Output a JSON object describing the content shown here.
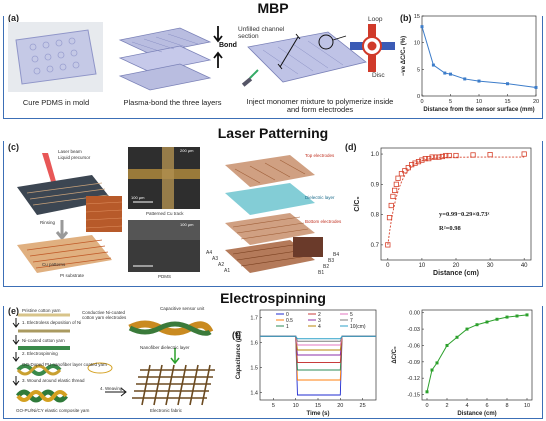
{
  "sections": {
    "mbp": "MBP",
    "laser": "Laser Patterning",
    "electro": "Electrospinning"
  },
  "panel_a": {
    "label": "(a)",
    "captions": [
      "Cure PDMS in mold",
      "Plasma-bond the three layers",
      "Inject monomer mixture to polymerize inside and form electrodes"
    ],
    "bond_label": "Bond",
    "channel_label": "Unfilled channel section",
    "loop_label": "Loop",
    "disc_label": "Disc"
  },
  "panel_b": {
    "label": "(b)"
  },
  "panel_c": {
    "label": "(c)",
    "labels": [
      "Laser beam",
      "Liquid precursor",
      "Rinsing",
      "Cu patterns",
      "PI substrate",
      "Patterned Cu track",
      "PDMS",
      "Top electrodes",
      "Dielectric layer",
      "Bottom electrodes"
    ],
    "electrode_labels": [
      "A4",
      "A3",
      "A2",
      "A1",
      "B1",
      "B2",
      "B3",
      "B4"
    ],
    "scale_labels": [
      "100 μm",
      "200 μm",
      "100 μm"
    ]
  },
  "panel_d": {
    "label": "(d)"
  },
  "panel_e": {
    "label": "(e)",
    "labels": [
      "Pristine cotton yarn",
      "1. Electroless deposition of Ni",
      "Ni-coated cotton yarn",
      "2. Electrospinning",
      "GO-Doped PU nanofiber layer coated yarn",
      "3. Wound around elastic thread",
      "GO-PU/Ni/CY elastic composite yarn",
      "Conductive Ni-coated cotton yarn electrodes",
      "Capacitive sensor unit",
      "Nanofiber dielectric layer",
      "4. Weaving",
      "Electronic fabric"
    ]
  },
  "panel_f": {
    "label": "(f)"
  },
  "chart_data": [
    {
      "id": "b",
      "type": "line",
      "x": [
        0,
        2,
        4,
        5,
        7.5,
        10,
        15,
        20
      ],
      "y": [
        13,
        5.8,
        4.3,
        4.1,
        3.2,
        2.8,
        2.3,
        1.6
      ],
      "xlabel": "Distance from the sensor surface (mm)",
      "ylabel": "−ve ΔC/C₀ (%)",
      "xlim": [
        0,
        20
      ],
      "ylim": [
        0,
        15
      ],
      "xticks": [
        0,
        5,
        10,
        15,
        20
      ],
      "yticks": [
        0,
        5,
        10,
        15
      ],
      "color": "#3d7dca"
    },
    {
      "id": "d",
      "type": "scatter",
      "x": [
        0,
        0.5,
        1,
        1.5,
        2,
        2.5,
        3,
        4,
        5,
        6,
        7,
        8,
        9,
        10,
        11,
        12,
        13,
        14,
        15,
        16,
        17,
        18,
        20,
        25,
        30,
        40
      ],
      "y": [
        0.7,
        0.79,
        0.83,
        0.86,
        0.88,
        0.9,
        0.92,
        0.935,
        0.945,
        0.955,
        0.965,
        0.97,
        0.975,
        0.98,
        0.985,
        0.985,
        0.99,
        0.99,
        0.99,
        0.992,
        0.995,
        0.995,
        0.995,
        0.997,
        0.998,
        1.0
      ],
      "fit_label": "y=0.99−0.29×0.73ˣ",
      "r2_label": "R²=0.98",
      "xlabel": "Distance (cm)",
      "ylabel": "C/C₀",
      "xlim": [
        -2,
        42
      ],
      "ylim": [
        0.65,
        1.02
      ],
      "xticks": [
        0,
        10,
        20,
        30,
        40
      ],
      "yticks": [
        0.7,
        0.8,
        0.9,
        1.0
      ],
      "color": "#d6402a"
    },
    {
      "id": "f1",
      "type": "line",
      "xlabel": "Time (s)",
      "ylabel": "Capacitance (pF)",
      "xlim": [
        2,
        28
      ],
      "ylim": [
        1.37,
        1.73
      ],
      "xticks": [
        5,
        10,
        15,
        20,
        25
      ],
      "yticks": [
        1.4,
        1.5,
        1.6,
        1.7
      ],
      "legend": [
        "0",
        "0.5",
        "1",
        "2",
        "3",
        "4",
        "5",
        "7",
        "10(cm)"
      ],
      "legend_colors": [
        "#1f2bd1",
        "#ff7f0e",
        "#2e8b57",
        "#c83c3c",
        "#8b2fa8",
        "#b8860b",
        "#e377c2",
        "#7f7f7f",
        "#2ca0c8"
      ],
      "baseline": 1.625,
      "levels": [
        1.39,
        1.45,
        1.49,
        1.52,
        1.55,
        1.57,
        1.59,
        1.605,
        1.615
      ],
      "t_on": 10,
      "t_off": 20
    },
    {
      "id": "f2",
      "type": "line",
      "x": [
        0,
        0.5,
        1,
        2,
        3,
        4,
        5,
        6,
        7,
        8,
        9,
        10
      ],
      "y": [
        -0.145,
        -0.105,
        -0.092,
        -0.06,
        -0.045,
        -0.03,
        -0.022,
        -0.017,
        -0.012,
        -0.008,
        -0.006,
        -0.004
      ],
      "xlabel": "Distance (cm)",
      "ylabel": "ΔC/C₀",
      "xlim": [
        -0.5,
        10.5
      ],
      "ylim": [
        -0.16,
        0.005
      ],
      "xticks": [
        0,
        2,
        4,
        6,
        8,
        10
      ],
      "yticks": [
        0.0,
        -0.03,
        -0.06,
        -0.09,
        -0.12,
        -0.15
      ],
      "color": "#2ca02c"
    }
  ]
}
